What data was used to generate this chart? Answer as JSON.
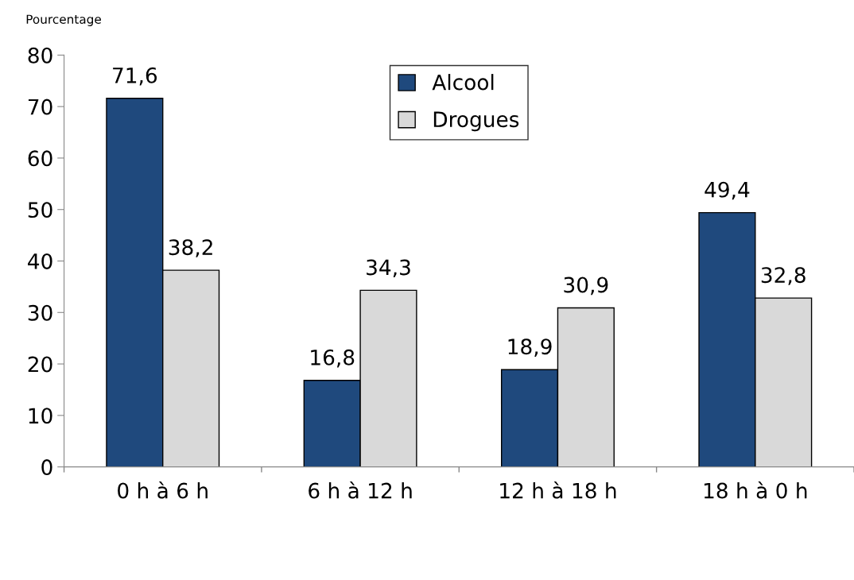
{
  "chart_data": {
    "type": "bar",
    "ylabel": "Pourcentage",
    "categories": [
      "0 h à 6 h",
      "6 h à 12 h",
      "12 h à 18 h",
      "18 h à 0 h"
    ],
    "series": [
      {
        "name": "Alcool",
        "color": "#1f497d",
        "values": [
          71.6,
          16.8,
          18.9,
          49.4
        ],
        "value_labels": [
          "71,6",
          "16,8",
          "18,9",
          "49,4"
        ]
      },
      {
        "name": "Drogues",
        "color": "#d9d9d9",
        "values": [
          38.2,
          34.3,
          30.9,
          32.8
        ],
        "value_labels": [
          "38,2",
          "34,3",
          "30,9",
          "32,8"
        ]
      }
    ],
    "ylim": [
      0,
      80
    ],
    "yticks": [
      0,
      10,
      20,
      30,
      40,
      50,
      60,
      70,
      80
    ],
    "grid": false,
    "legend": "top"
  }
}
